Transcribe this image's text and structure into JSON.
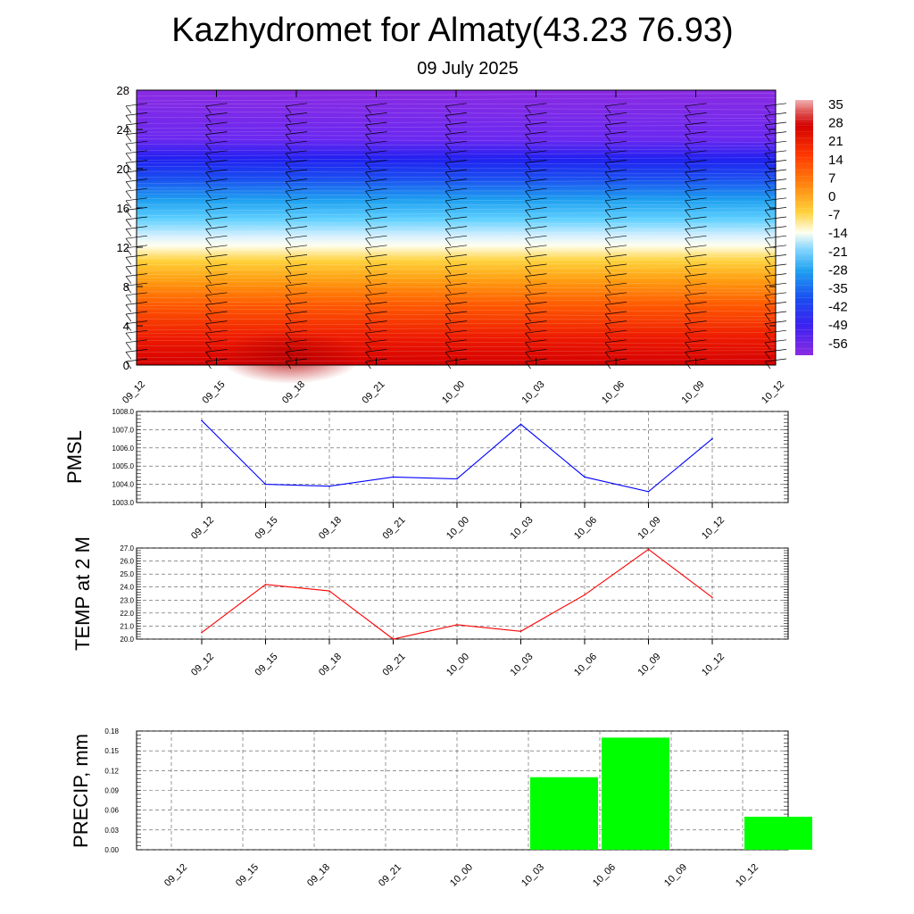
{
  "header": {
    "title": "Kazhydromet for Almaty(43.23 76.93)",
    "subtitle": "09 July 2025"
  },
  "time_labels": [
    "09_12",
    "09_15",
    "09_18",
    "09_21",
    "10_00",
    "10_03",
    "10_06",
    "10_09",
    "10_12"
  ],
  "chart_data": [
    {
      "type": "heatmap",
      "name": "upper-air temperature cross-section",
      "x": [
        "09_12",
        "09_15",
        "09_18",
        "09_21",
        "10_00",
        "10_03",
        "10_06",
        "10_09",
        "10_12"
      ],
      "y_ticks": [
        0,
        4,
        8,
        12,
        16,
        20,
        24,
        28
      ],
      "ylim": [
        0,
        28
      ],
      "colorbar_ticks": [
        "35",
        "28",
        "21",
        "14",
        "7",
        "0",
        "-7",
        "-14",
        "-21",
        "-28",
        "-35",
        "-42",
        "-49",
        "-56"
      ],
      "colorbar_range": [
        -60,
        38
      ],
      "colors": {
        "cold": "#8a2be2",
        "warm": "#d60000",
        "neutral": "#fffff0"
      }
    },
    {
      "type": "line",
      "ylabel": "PMSL",
      "categories": [
        "09_12",
        "09_15",
        "09_18",
        "09_21",
        "10_00",
        "10_03",
        "10_06",
        "10_09",
        "10_12"
      ],
      "values": [
        1007.5,
        1004.0,
        1003.9,
        1004.4,
        1004.3,
        1007.3,
        1004.4,
        1003.6,
        1006.5
      ],
      "ylim": [
        1003.0,
        1008.0
      ],
      "y_ticks": [
        "1003.0",
        "1004.0",
        "1005.0",
        "1006.0",
        "1007.0",
        "1008.0"
      ],
      "color": "#0000ff"
    },
    {
      "type": "line",
      "ylabel": "TEMP at 2 M",
      "categories": [
        "09_12",
        "09_15",
        "09_18",
        "09_21",
        "10_00",
        "10_03",
        "10_06",
        "10_09",
        "10_12"
      ],
      "values": [
        20.5,
        24.2,
        23.7,
        20.0,
        21.1,
        20.6,
        23.4,
        26.9,
        23.2
      ],
      "ylim": [
        20.0,
        27.0
      ],
      "y_ticks": [
        "20.0",
        "21.0",
        "22.0",
        "23.0",
        "24.0",
        "25.0",
        "26.0",
        "27.0"
      ],
      "color": "#ff0000"
    },
    {
      "type": "bar",
      "ylabel": "PRECIP, mm",
      "categories": [
        "09_12",
        "09_15",
        "09_18",
        "09_21",
        "10_00",
        "10_03",
        "10_06",
        "10_09",
        "10_12"
      ],
      "values": [
        0,
        0,
        0,
        0,
        0,
        0.11,
        0.17,
        0,
        0.05
      ],
      "ylim": [
        0,
        0.18
      ],
      "y_ticks": [
        "0.00",
        "0.03",
        "0.06",
        "0.09",
        "0.12",
        "0.15",
        "0.18"
      ],
      "color": "#00ff00"
    }
  ]
}
